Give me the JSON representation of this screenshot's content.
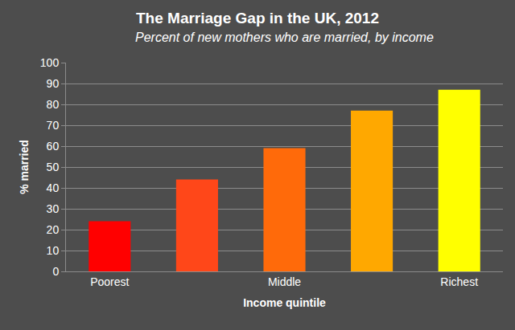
{
  "chart_data": {
    "type": "bar",
    "title": "The Marriage Gap in the UK, 2012",
    "subtitle": "Percent of new mothers who are married, by income",
    "x_label": "Income quintile",
    "y_label": "% married",
    "categories": [
      "Poorest",
      null,
      "Middle",
      null,
      "Richest"
    ],
    "values": [
      24,
      44,
      59,
      77,
      87
    ],
    "colors": [
      "#ff0000",
      "#ff4719",
      "#ff6a0a",
      "#ffa800",
      "#ffff00"
    ],
    "ylim": [
      0,
      100
    ],
    "yticks": [
      0,
      10,
      20,
      30,
      40,
      50,
      60,
      70,
      80,
      90,
      100
    ],
    "grid": true
  }
}
